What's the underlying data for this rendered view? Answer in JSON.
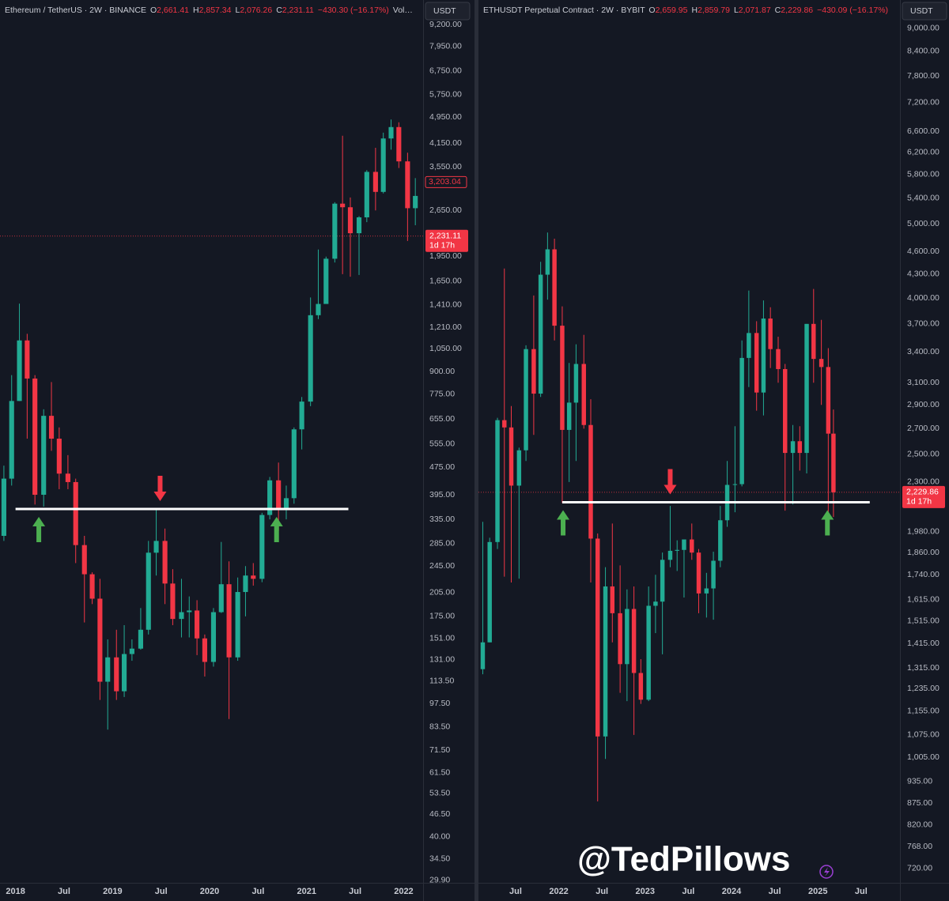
{
  "chart_data": [
    {
      "type": "candlestick",
      "title": "Ethereum / TetherUS · 2W · BINANCE",
      "ohlc": [
        {
          "key": "O",
          "value": "2,661.41"
        },
        {
          "key": "H",
          "value": "2,857.34"
        },
        {
          "key": "L",
          "value": "2,076.26"
        },
        {
          "key": "C",
          "value": "2,231.11"
        }
      ],
      "change": "−430.30 (−16.17%)",
      "extra": "Vol…",
      "currency": "USDT",
      "log_scale": true,
      "grid": false,
      "up_color": "#22ab94",
      "down_color": "#f23645",
      "xlim": [
        2017.84,
        2022.2
      ],
      "ylim": [
        29.4,
        10840
      ],
      "xticks": [
        {
          "value": 2018,
          "label": "2018"
        },
        {
          "value": 2018.5,
          "label": "Jul"
        },
        {
          "value": 2019,
          "label": "2019"
        },
        {
          "value": 2019.5,
          "label": "Jul"
        },
        {
          "value": 2020,
          "label": "2020"
        },
        {
          "value": 2020.5,
          "label": "Jul"
        },
        {
          "value": 2021,
          "label": "2021"
        },
        {
          "value": 2021.5,
          "label": "Jul"
        },
        {
          "value": 2022,
          "label": "2022"
        }
      ],
      "yticks": [
        {
          "value": 9200,
          "label": "9,200.00"
        },
        {
          "value": 7950,
          "label": "7,950.00"
        },
        {
          "value": 6750,
          "label": "6,750.00"
        },
        {
          "value": 5750,
          "label": "5,750.00"
        },
        {
          "value": 4950,
          "label": "4,950.00"
        },
        {
          "value": 4150,
          "label": "4,150.00"
        },
        {
          "value": 3550,
          "label": "3,550.00"
        },
        {
          "value": 2650,
          "label": "2,650.00"
        },
        {
          "value": 1950,
          "label": "1,950.00"
        },
        {
          "value": 1650,
          "label": "1,650.00"
        },
        {
          "value": 1410,
          "label": "1,410.00"
        },
        {
          "value": 1210,
          "label": "1,210.00"
        },
        {
          "value": 1050,
          "label": "1,050.00"
        },
        {
          "value": 900,
          "label": "900.00"
        },
        {
          "value": 775,
          "label": "775.00"
        },
        {
          "value": 655,
          "label": "655.00"
        },
        {
          "value": 555,
          "label": "555.00"
        },
        {
          "value": 475,
          "label": "475.00"
        },
        {
          "value": 395,
          "label": "395.00"
        },
        {
          "value": 335,
          "label": "335.00"
        },
        {
          "value": 285,
          "label": "285.00"
        },
        {
          "value": 245,
          "label": "245.00"
        },
        {
          "value": 205,
          "label": "205.00"
        },
        {
          "value": 175,
          "label": "175.00"
        },
        {
          "value": 151,
          "label": "151.00"
        },
        {
          "value": 131,
          "label": "131.00"
        },
        {
          "value": 113.5,
          "label": "113.50"
        },
        {
          "value": 97.5,
          "label": "97.50"
        },
        {
          "value": 83.5,
          "label": "83.50"
        },
        {
          "value": 71.5,
          "label": "71.50"
        },
        {
          "value": 61.5,
          "label": "61.50"
        },
        {
          "value": 53.5,
          "label": "53.50"
        },
        {
          "value": 46.5,
          "label": "46.50"
        },
        {
          "value": 40,
          "label": "40.00"
        },
        {
          "value": 34.5,
          "label": "34.50"
        },
        {
          "value": 29.9,
          "label": "29.90"
        }
      ],
      "x": [
        2017.88,
        2017.96,
        2018.04,
        2018.12,
        2018.2,
        2018.29,
        2018.37,
        2018.45,
        2018.54,
        2018.62,
        2018.71,
        2018.79,
        2018.87,
        2018.95,
        2019.04,
        2019.12,
        2019.2,
        2019.29,
        2019.37,
        2019.45,
        2019.54,
        2019.62,
        2019.71,
        2019.79,
        2019.87,
        2019.95,
        2020.04,
        2020.12,
        2020.2,
        2020.29,
        2020.37,
        2020.45,
        2020.54,
        2020.62,
        2020.71,
        2020.79,
        2020.87,
        2020.95,
        2021.04,
        2021.12,
        2021.2,
        2021.29,
        2021.37,
        2021.45,
        2021.54,
        2021.62,
        2021.71,
        2021.79,
        2021.87,
        2021.95,
        2022.04,
        2022.12
      ],
      "open": [
        300,
        440,
        740,
        1110,
        860,
        395,
        670,
        575,
        455,
        430,
        282,
        232,
        197,
        113,
        133,
        106,
        136,
        141,
        160,
        268,
        290,
        218,
        172,
        180,
        182,
        151,
        129,
        180,
        217,
        133,
        206,
        230,
        225,
        345,
        435,
        360,
        386,
        612,
        737,
        1314,
        1417,
        1918,
        2773,
        2707,
        2275,
        2530,
        3430,
        3000,
        4290,
        4630,
        3680,
        2690
      ],
      "high": [
        480,
        880,
        1420,
        1160,
        880,
        700,
        840,
        620,
        515,
        440,
        300,
        235,
        225,
        150,
        160,
        165,
        150,
        185,
        290,
        360,
        315,
        240,
        225,
        200,
        195,
        155,
        185,
        288,
        253,
        227,
        245,
        250,
        350,
        445,
        490,
        420,
        620,
        760,
        1480,
        2040,
        1945,
        2800,
        4370,
        2890,
        2550,
        3470,
        4030,
        4460,
        4870,
        4780,
        3900,
        3290
      ],
      "low": [
        290,
        420,
        740,
        575,
        370,
        365,
        530,
        410,
        410,
        250,
        168,
        190,
        100,
        82,
        100,
        102,
        130,
        140,
        155,
        230,
        190,
        165,
        152,
        152,
        135,
        117,
        125,
        179,
        88,
        130,
        175,
        215,
        220,
        335,
        310,
        335,
        372,
        535,
        715,
        1280,
        1420,
        1870,
        1730,
        1700,
        1720,
        2450,
        2650,
        2970,
        3980,
        3520,
        2160,
        2400
      ],
      "close": [
        440,
        740,
        1110,
        860,
        395,
        670,
        575,
        455,
        430,
        282,
        232,
        197,
        113,
        133,
        106,
        136,
        141,
        160,
        268,
        290,
        218,
        172,
        180,
        182,
        151,
        129,
        180,
        217,
        133,
        206,
        230,
        225,
        345,
        435,
        360,
        386,
        612,
        737,
        1314,
        1417,
        1918,
        2773,
        2707,
        2275,
        2530,
        3430,
        3000,
        4290,
        4630,
        3680,
        2690,
        2920
      ],
      "current_price": {
        "value": 2231.11,
        "label": "2,231.11",
        "countdown": "1d 17h"
      },
      "price_label": {
        "value": 3203.04,
        "label": "3,203.04"
      },
      "support": {
        "value": 359,
        "x": [
          2018.0,
          2021.43
        ]
      },
      "arrows": [
        {
          "x": 2018.24,
          "direction": "up"
        },
        {
          "x": 2019.49,
          "direction": "down"
        },
        {
          "x": 2020.69,
          "direction": "up"
        }
      ]
    },
    {
      "type": "candlestick",
      "title": "ETHUSDT Perpetual Contract · 2W · BYBIT",
      "ohlc": [
        {
          "key": "O",
          "value": "2,659.95"
        },
        {
          "key": "H",
          "value": "2,859.79"
        },
        {
          "key": "L",
          "value": "2,071.87"
        },
        {
          "key": "C",
          "value": "2,229.86"
        }
      ],
      "change": "−430.09 (−16.17%)",
      "currency": "USDT",
      "log_scale": true,
      "grid": false,
      "up_color": "#22ab94",
      "down_color": "#f23645",
      "xlim": [
        2021.07,
        2025.95
      ],
      "ylim": [
        689,
        9800
      ],
      "xticks": [
        {
          "value": 2021.5,
          "label": "Jul"
        },
        {
          "value": 2022,
          "label": "2022"
        },
        {
          "value": 2022.5,
          "label": "Jul"
        },
        {
          "value": 2023,
          "label": "2023"
        },
        {
          "value": 2023.5,
          "label": "Jul"
        },
        {
          "value": 2024,
          "label": "2024"
        },
        {
          "value": 2024.5,
          "label": "Jul"
        },
        {
          "value": 2025,
          "label": "2025"
        },
        {
          "value": 2025.5,
          "label": "Jul"
        }
      ],
      "yticks": [
        {
          "value": 9000,
          "label": "9,000.00"
        },
        {
          "value": 8400,
          "label": "8,400.00"
        },
        {
          "value": 7800,
          "label": "7,800.00"
        },
        {
          "value": 7200,
          "label": "7,200.00"
        },
        {
          "value": 6600,
          "label": "6,600.00"
        },
        {
          "value": 6200,
          "label": "6,200.00"
        },
        {
          "value": 5800,
          "label": "5,800.00"
        },
        {
          "value": 5400,
          "label": "5,400.00"
        },
        {
          "value": 5000,
          "label": "5,000.00"
        },
        {
          "value": 4600,
          "label": "4,600.00"
        },
        {
          "value": 4300,
          "label": "4,300.00"
        },
        {
          "value": 4000,
          "label": "4,000.00"
        },
        {
          "value": 3700,
          "label": "3,700.00"
        },
        {
          "value": 3400,
          "label": "3,400.00"
        },
        {
          "value": 3100,
          "label": "3,100.00"
        },
        {
          "value": 2900,
          "label": "2,900.00"
        },
        {
          "value": 2700,
          "label": "2,700.00"
        },
        {
          "value": 2500,
          "label": "2,500.00"
        },
        {
          "value": 2300,
          "label": "2,300.00"
        },
        {
          "value": 1980,
          "label": "1,980.00"
        },
        {
          "value": 1860,
          "label": "1,860.00"
        },
        {
          "value": 1740,
          "label": "1,740.00"
        },
        {
          "value": 1615,
          "label": "1,615.00"
        },
        {
          "value": 1515,
          "label": "1,515.00"
        },
        {
          "value": 1415,
          "label": "1,415.00"
        },
        {
          "value": 1315,
          "label": "1,315.00"
        },
        {
          "value": 1235,
          "label": "1,235.00"
        },
        {
          "value": 1155,
          "label": "1,155.00"
        },
        {
          "value": 1075,
          "label": "1,075.00"
        },
        {
          "value": 1005,
          "label": "1,005.00"
        },
        {
          "value": 935,
          "label": "935.00"
        },
        {
          "value": 875,
          "label": "875.00"
        },
        {
          "value": 820,
          "label": "820.00"
        },
        {
          "value": 768,
          "label": "768.00"
        },
        {
          "value": 720,
          "label": "720.00"
        }
      ],
      "x": [
        2021.12,
        2021.2,
        2021.29,
        2021.37,
        2021.45,
        2021.54,
        2021.62,
        2021.71,
        2021.79,
        2021.87,
        2021.95,
        2022.04,
        2022.12,
        2022.2,
        2022.29,
        2022.37,
        2022.45,
        2022.54,
        2022.62,
        2022.71,
        2022.79,
        2022.87,
        2022.95,
        2023.04,
        2023.12,
        2023.2,
        2023.29,
        2023.37,
        2023.45,
        2023.54,
        2023.62,
        2023.71,
        2023.79,
        2023.87,
        2023.95,
        2024.04,
        2024.12,
        2024.2,
        2024.29,
        2024.37,
        2024.45,
        2024.54,
        2024.62,
        2024.71,
        2024.79,
        2024.87,
        2024.95,
        2025.04,
        2025.12,
        2025.18
      ],
      "open": [
        1310,
        1420,
        1920,
        2770,
        2710,
        2275,
        2530,
        3430,
        3000,
        4290,
        4630,
        3680,
        2690,
        2920,
        3280,
        2730,
        1940,
        1070,
        1680,
        1550,
        1330,
        1570,
        1295,
        1195,
        1585,
        1605,
        1820,
        1870,
        1875,
        1935,
        1860,
        1645,
        1670,
        1815,
        2050,
        2280,
        2285,
        3340,
        3600,
        3010,
        3760,
        3430,
        3230,
        2510,
        2600,
        2510,
        3700,
        3330,
        3250,
        2660
      ],
      "high": [
        2040,
        1945,
        2790,
        4370,
        2890,
        2550,
        3470,
        4030,
        4460,
        4870,
        4780,
        3900,
        3290,
        3480,
        3580,
        2950,
        1970,
        1780,
        2030,
        1790,
        1665,
        1680,
        1350,
        1680,
        1740,
        1860,
        2140,
        1930,
        1930,
        2030,
        1880,
        1750,
        1865,
        2140,
        2450,
        2720,
        3520,
        4090,
        3730,
        3970,
        3890,
        3560,
        3280,
        2730,
        2720,
        3700,
        4110,
        3745,
        3440,
        2860
      ],
      "low": [
        1290,
        1420,
        1880,
        1730,
        1700,
        1720,
        2450,
        2650,
        2970,
        3980,
        3520,
        2160,
        2300,
        2450,
        2700,
        1700,
        880,
        1000,
        1420,
        1220,
        1190,
        1075,
        1180,
        1190,
        1460,
        1370,
        1780,
        1760,
        1625,
        1820,
        1550,
        1530,
        1520,
        1780,
        2010,
        2100,
        2270,
        3060,
        2850,
        2810,
        3240,
        3100,
        2110,
        2150,
        2380,
        2360,
        3100,
        2900,
        2100,
        2070
      ],
      "close": [
        1420,
        1920,
        2770,
        2710,
        2275,
        2530,
        3430,
        3000,
        4290,
        4630,
        3680,
        2690,
        2920,
        3280,
        2730,
        1940,
        1070,
        1680,
        1550,
        1330,
        1570,
        1295,
        1195,
        1585,
        1605,
        1820,
        1870,
        1875,
        1935,
        1860,
        1645,
        1670,
        1815,
        2050,
        2280,
        2285,
        3340,
        3600,
        3010,
        3760,
        3430,
        3230,
        2510,
        2600,
        2510,
        3700,
        3330,
        3250,
        2660,
        2230
      ],
      "current_price": {
        "value": 2229.86,
        "label": "2,229.86",
        "countdown": "1d 17h"
      },
      "support": {
        "value": 2164,
        "x": [
          2022.04,
          2025.6
        ]
      },
      "arrows": [
        {
          "x": 2022.05,
          "direction": "up"
        },
        {
          "x": 2023.29,
          "direction": "down"
        },
        {
          "x": 2025.11,
          "direction": "up"
        }
      ]
    }
  ],
  "watermark": "@TedPillows"
}
